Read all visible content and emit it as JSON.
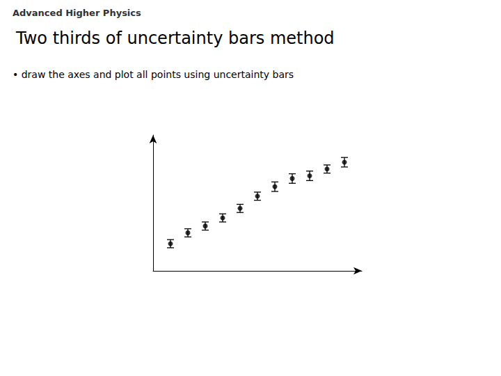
{
  "chart_data": {
    "type": "scatter",
    "title": "Two thirds of uncertainty bars method",
    "annotations": [
      "Advanced Higher Physics",
      "• draw the axes and plot all points using uncertainty bars"
    ],
    "x": [
      1,
      2,
      3,
      4,
      5,
      6,
      7,
      8,
      9,
      10,
      11
    ],
    "values": [
      2.0,
      2.8,
      3.3,
      3.9,
      4.6,
      5.5,
      6.2,
      6.8,
      7.0,
      7.5,
      8.0
    ],
    "yerr": [
      0.3,
      0.3,
      0.3,
      0.3,
      0.3,
      0.3,
      0.35,
      0.35,
      0.35,
      0.3,
      0.35
    ],
    "color": "#000000",
    "xlim": [
      0,
      12
    ],
    "ylim": [
      0,
      10
    ],
    "tick_labels": false,
    "grid": false
  }
}
